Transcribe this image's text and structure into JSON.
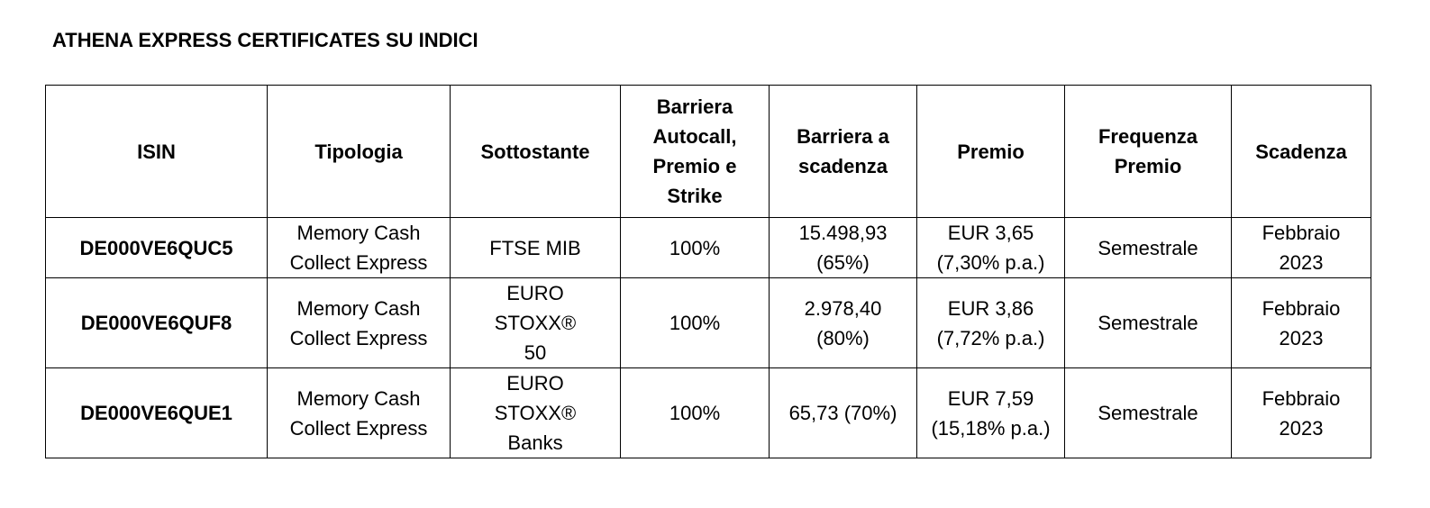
{
  "title": "ATHENA EXPRESS CERTIFICATES SU INDICI",
  "table": {
    "header": [
      [
        "ISIN"
      ],
      [
        "Tipologia"
      ],
      [
        "Sottostante"
      ],
      [
        "Barriera",
        "Autocall,",
        "Premio e",
        "Strike"
      ],
      [
        "Barriera  a",
        "scadenza"
      ],
      [
        "Premio"
      ],
      [
        "Frequenza",
        "Premio"
      ],
      [
        "Scadenza"
      ]
    ],
    "rows": [
      [
        [
          "DE000VE6QUC5"
        ],
        [
          "Memory Cash",
          "Collect Express"
        ],
        [
          "FTSE MIB"
        ],
        [
          "100%"
        ],
        [
          "15.498,93",
          "(65%)"
        ],
        [
          "EUR 3,65",
          "(7,30% p.a.)"
        ],
        [
          "Semestrale"
        ],
        [
          "Febbraio",
          "2023"
        ]
      ],
      [
        [
          "DE000VE6QUF8"
        ],
        [
          "Memory Cash",
          "Collect Express"
        ],
        [
          "EURO",
          "STOXX®",
          "50"
        ],
        [
          "100%"
        ],
        [
          "2.978,40",
          "(80%)"
        ],
        [
          "EUR 3,86",
          "(7,72% p.a.)"
        ],
        [
          "Semestrale"
        ],
        [
          "Febbraio",
          "2023"
        ]
      ],
      [
        [
          "DE000VE6QUE1"
        ],
        [
          "Memory Cash",
          "Collect Express"
        ],
        [
          "EURO",
          "STOXX®",
          "Banks"
        ],
        [
          "100%"
        ],
        [
          "65,73 (70%)"
        ],
        [
          "EUR 7,59",
          "(15,18% p.a.)"
        ],
        [
          "Semestrale"
        ],
        [
          "Febbraio",
          "2023"
        ]
      ]
    ]
  }
}
